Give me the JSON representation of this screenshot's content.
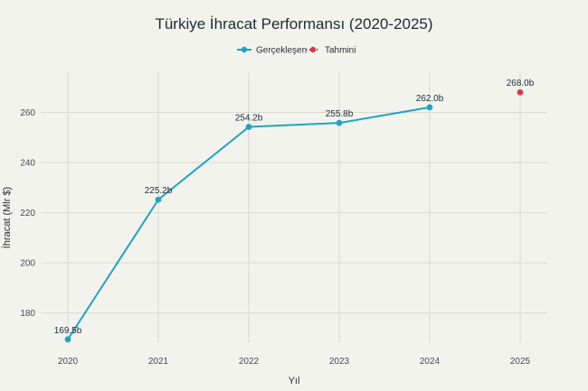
{
  "chart_data": {
    "type": "line",
    "title": "Türkiye İhracat Performansı (2020-2025)",
    "xlabel": "Yıl",
    "ylabel": "İhracat (Mlr $)",
    "x": [
      2020,
      2021,
      2022,
      2023,
      2024,
      2025
    ],
    "xlim": [
      2019.7,
      2025.3
    ],
    "ylim": [
      168,
      276
    ],
    "yticks": [
      180,
      200,
      220,
      240,
      260
    ],
    "grid": true,
    "legend_position": "top-center",
    "series": [
      {
        "name": "Gerçekleşen",
        "color": "#1fa5c0",
        "style": "line-markers",
        "x": [
          2020,
          2021,
          2022,
          2023,
          2024
        ],
        "values": [
          169.5,
          225.2,
          254.2,
          255.8,
          262.0
        ],
        "labels": [
          "169.5b",
          "225.2b",
          "254.2b",
          "255.8b",
          "262.0b"
        ]
      },
      {
        "name": "Tahmini",
        "color": "#d33b4a",
        "style": "dotted-markers",
        "x": [
          2025
        ],
        "values": [
          268.0
        ],
        "labels": [
          "268.0b"
        ]
      }
    ]
  }
}
